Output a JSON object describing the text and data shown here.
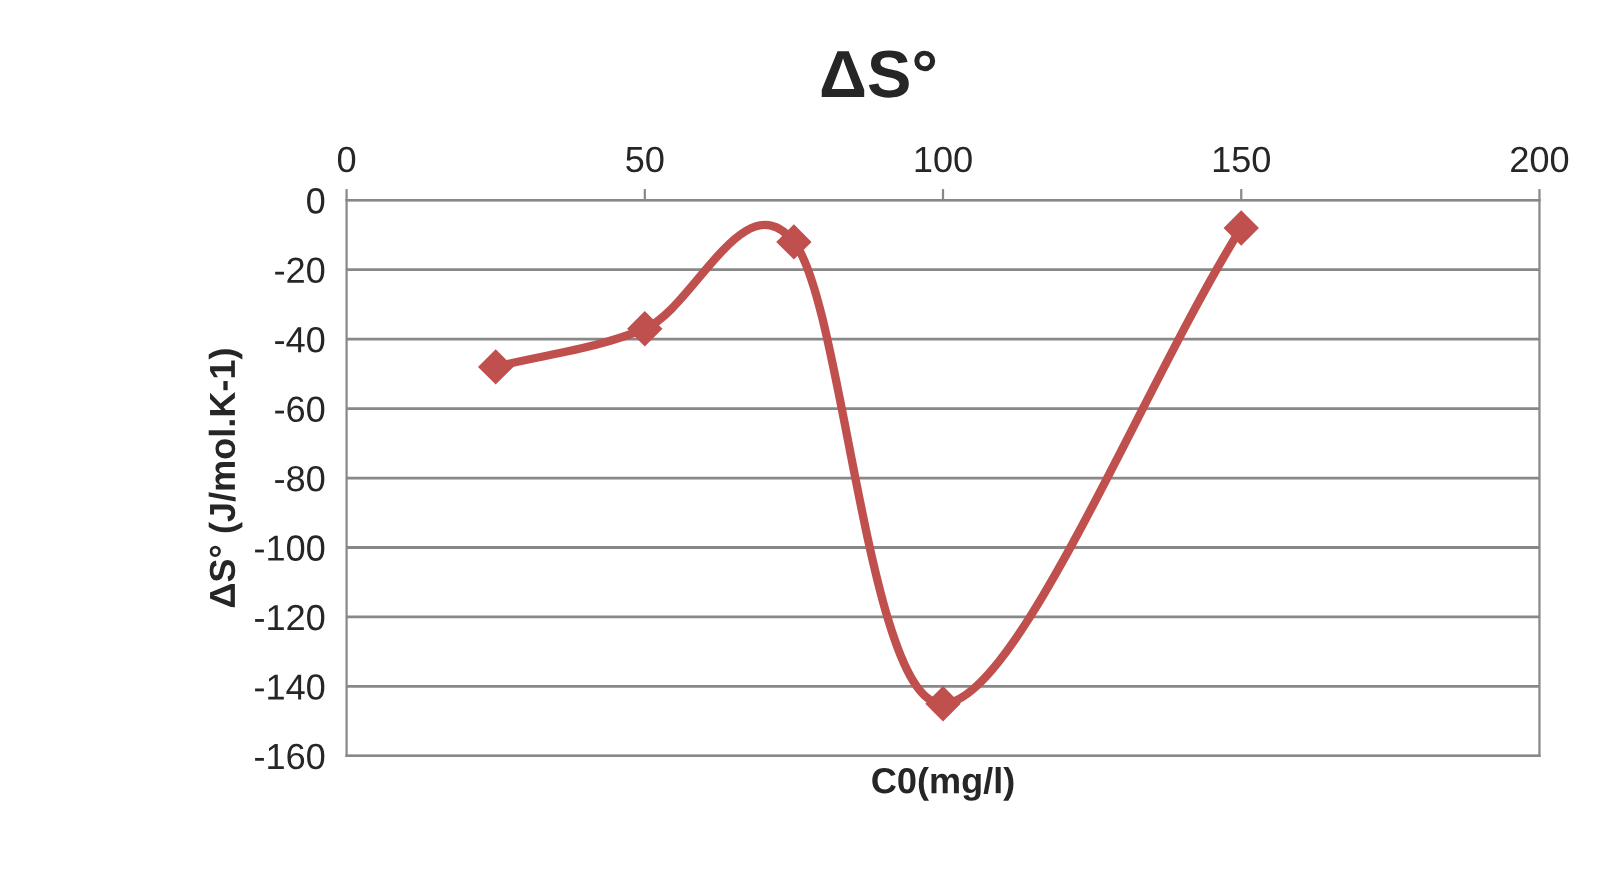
{
  "chart_data": {
    "type": "line",
    "title": "ΔS°",
    "xlabel": "C0(mg/l)",
    "ylabel": "ΔS° (J/mol.K-1)",
    "series": [
      {
        "color": "#c0504d",
        "x": [
          25,
          50,
          75,
          100,
          150
        ],
        "values": [
          -48,
          -37,
          -12,
          -145,
          -8
        ]
      }
    ],
    "xlim": [
      0,
      200
    ],
    "xticks": [
      0,
      50,
      100,
      150,
      200
    ],
    "ylim": [
      -160,
      0
    ],
    "yticks": [
      -160,
      -140,
      -120,
      -100,
      -80,
      -60,
      -40,
      -20,
      0
    ],
    "grid": "y",
    "marker": "diamond",
    "line_style": "solid",
    "legend": false
  }
}
